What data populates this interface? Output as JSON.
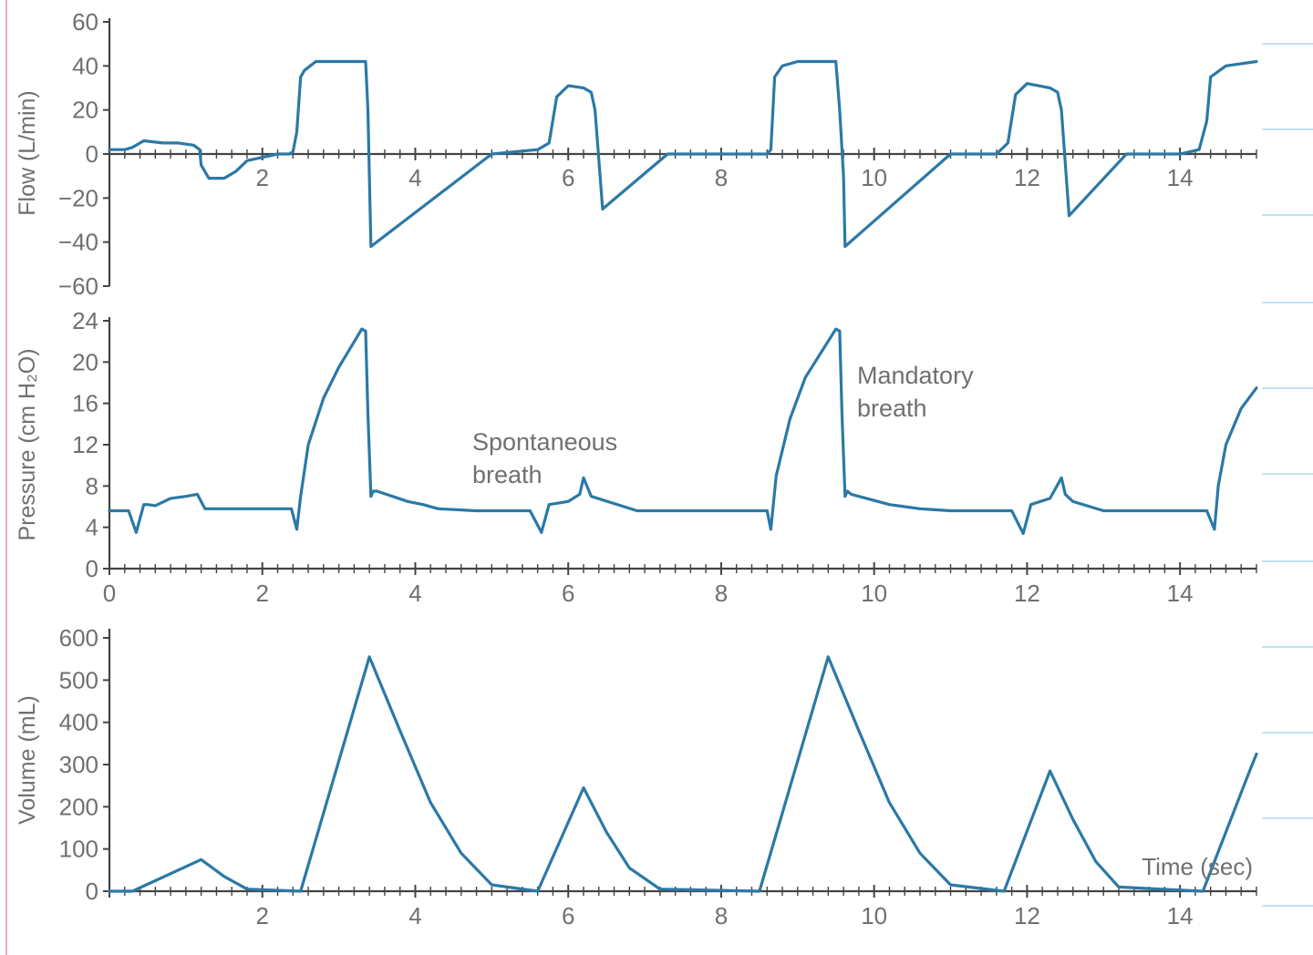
{
  "chart_data": [
    {
      "type": "line",
      "ylabel": "Flow (L/min)",
      "ylim": [
        -60,
        60
      ],
      "yticks": [
        "60",
        "40",
        "20",
        "0",
        "−20",
        "−40",
        "−60"
      ],
      "xlim": [
        0,
        15
      ],
      "xticks": [
        "2",
        "4",
        "6",
        "8",
        "10",
        "12",
        "14"
      ],
      "series": [
        {
          "color": "#2b79a6",
          "x": [
            0,
            0.2,
            0.3,
            0.45,
            0.7,
            0.9,
            1.1,
            1.18,
            1.2,
            1.3,
            1.5,
            1.65,
            1.8,
            2.2,
            2.35,
            2.4,
            2.45,
            2.5,
            2.55,
            2.7,
            3,
            3.35,
            3.38,
            3.4,
            3.42,
            5,
            5.6,
            5.75,
            5.85,
            6,
            6.2,
            6.3,
            6.35,
            6.45,
            7.3,
            8.6,
            8.65,
            8.7,
            8.8,
            9,
            9.5,
            9.55,
            9.6,
            9.62,
            11.0,
            11.6,
            11.75,
            11.85,
            12.0,
            12.3,
            12.4,
            12.45,
            12.55,
            13.3,
            14.0,
            14.25,
            14.35,
            14.4,
            14.6,
            15.0
          ],
          "y": [
            2,
            2,
            3,
            6,
            5,
            5,
            4,
            2,
            -5,
            -11,
            -11,
            -8,
            -3,
            0,
            0,
            1,
            10,
            35,
            38,
            42,
            42,
            42,
            20,
            -10,
            -42,
            0,
            2,
            5,
            26,
            31,
            30,
            28,
            20,
            -25,
            0,
            0,
            2,
            35,
            40,
            42,
            42,
            20,
            -10,
            -42,
            0,
            0,
            5,
            27,
            32,
            30,
            28,
            20,
            -28,
            0,
            0,
            2,
            15,
            35,
            40,
            42
          ]
        }
      ]
    },
    {
      "type": "line",
      "ylabel": "Pressure (cm H₂O)",
      "ylim": [
        0,
        24
      ],
      "yticks": [
        "24",
        "20",
        "16",
        "12",
        "8",
        "4",
        "0"
      ],
      "xlim": [
        0,
        15
      ],
      "xticks": [
        "0",
        "2",
        "4",
        "6",
        "8",
        "10",
        "12",
        "14"
      ],
      "series": [
        {
          "color": "#2b79a6",
          "x": [
            0,
            0.25,
            0.35,
            0.45,
            0.5,
            0.6,
            0.8,
            1.0,
            1.15,
            1.25,
            2.2,
            2.38,
            2.45,
            2.5,
            2.6,
            2.8,
            3.0,
            3.3,
            3.35,
            3.38,
            3.42,
            3.45,
            3.5,
            3.9,
            4.1,
            4.3,
            4.8,
            5.5,
            5.65,
            5.75,
            6.0,
            6.15,
            6.2,
            6.3,
            6.9,
            8.5,
            8.6,
            8.65,
            8.72,
            8.9,
            9.1,
            9.5,
            9.55,
            9.58,
            9.62,
            9.65,
            9.7,
            10.2,
            10.4,
            10.6,
            11.0,
            11.8,
            11.95,
            12.05,
            12.3,
            12.45,
            12.5,
            12.6,
            13.0,
            14.35,
            14.45,
            14.5,
            14.6,
            14.8,
            15.0
          ],
          "y": [
            5.6,
            5.6,
            3.5,
            6.2,
            6.2,
            6.1,
            6.8,
            7.0,
            7.2,
            5.8,
            5.8,
            5.8,
            3.8,
            7,
            12,
            16.5,
            19.5,
            23.2,
            23.0,
            15,
            7,
            7.5,
            7.5,
            6.5,
            6.2,
            5.8,
            5.6,
            5.6,
            3.5,
            6.2,
            6.5,
            7.2,
            8.8,
            7.0,
            5.6,
            5.6,
            5.6,
            3.8,
            9,
            14.5,
            18.5,
            23.2,
            23.0,
            15,
            7,
            7.5,
            7.2,
            6.2,
            6.0,
            5.8,
            5.6,
            5.6,
            3.4,
            6.2,
            6.8,
            8.8,
            7.2,
            6.5,
            5.6,
            5.6,
            3.8,
            8,
            12,
            15.5,
            17.5
          ]
        }
      ]
    },
    {
      "type": "line",
      "ylabel": "Volume (mL)",
      "ylim": [
        0,
        600
      ],
      "yticks": [
        "600",
        "500",
        "400",
        "300",
        "200",
        "100",
        "0"
      ],
      "xlim": [
        0,
        15
      ],
      "xticks": [
        "2",
        "4",
        "6",
        "8",
        "10",
        "12",
        "14"
      ],
      "series": [
        {
          "color": "#2b79a6",
          "x": [
            0,
            0.3,
            1.2,
            1.5,
            1.8,
            2.5,
            3.4,
            3.8,
            4.2,
            4.6,
            5.0,
            5.6,
            6.2,
            6.5,
            6.8,
            7.2,
            8.5,
            9.4,
            9.8,
            10.2,
            10.6,
            11.0,
            11.7,
            12.3,
            12.6,
            12.9,
            13.2,
            14.3,
            14.9,
            15.0
          ],
          "y": [
            0,
            0,
            75,
            35,
            5,
            0,
            555,
            380,
            210,
            90,
            15,
            0,
            245,
            140,
            55,
            5,
            0,
            555,
            380,
            210,
            90,
            15,
            0,
            285,
            170,
            70,
            10,
            0,
            280,
            325
          ]
        }
      ],
      "annotations": [
        "Time (sec)"
      ]
    }
  ],
  "annotations": {
    "spontaneous_line1": "Spontaneous",
    "spontaneous_line2": "breath",
    "mandatory_line1": "Mandatory",
    "mandatory_line2": "breath"
  }
}
